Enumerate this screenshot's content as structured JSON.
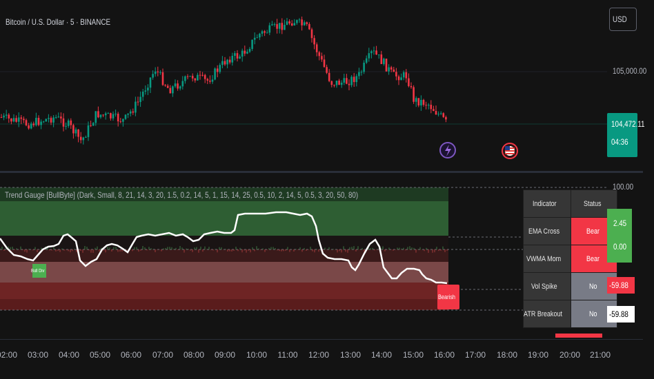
{
  "symbol": {
    "title": "Bitcoin / U.S. Dollar · 5 · BINANCE"
  },
  "price_axis": {
    "currency_button": "USD",
    "labels": [
      "105,000.00"
    ],
    "last_price": "104,472.11",
    "countdown": "04:36"
  },
  "indicator": {
    "title": "Trend Gauge [BullByte] (Dark, Small, 8, 21, 14, 3, 20, 1.5, 0.2, 14, 5, 1, 15, 14, 25, 0.5, 10, 2, 14, 5, 0.5, 3, 20, 50, 80)",
    "axis_top": "100.00",
    "value_green_1": "2.45",
    "value_green_2": "0.00",
    "value_red": "-59.88",
    "value_white": "-59.88",
    "bull_div_label": "Bull Div",
    "bearish_label": "Bearish"
  },
  "status_table": {
    "headers": [
      "Indicator",
      "Status"
    ],
    "rows": [
      {
        "indicator": "EMA Cross",
        "status": "Bear",
        "state": "bear"
      },
      {
        "indicator": "VWMA Mom",
        "status": "Bear",
        "state": "bear"
      },
      {
        "indicator": "Vol Spike",
        "status": "No",
        "state": "no"
      },
      {
        "indicator": "ATR Breakout",
        "status": "No",
        "state": "no"
      }
    ]
  },
  "time_axis": {
    "ticks": [
      "02:00",
      "03:00",
      "04:00",
      "05:00",
      "06:00",
      "07:00",
      "08:00",
      "09:00",
      "10:00",
      "11:00",
      "12:00",
      "13:00",
      "14:00",
      "15:00",
      "16:00",
      "17:00",
      "18:00",
      "19:00",
      "20:00",
      "21:00"
    ]
  },
  "icons": [
    "lightning-event-icon",
    "us-flag-event-icon"
  ],
  "colors": {
    "up": "#089981",
    "down": "#f23645",
    "bg": "#131313",
    "gauge_line": "#ffffff",
    "bull_zone": "#2e5e33",
    "bear_zone": "#6e2424"
  }
}
